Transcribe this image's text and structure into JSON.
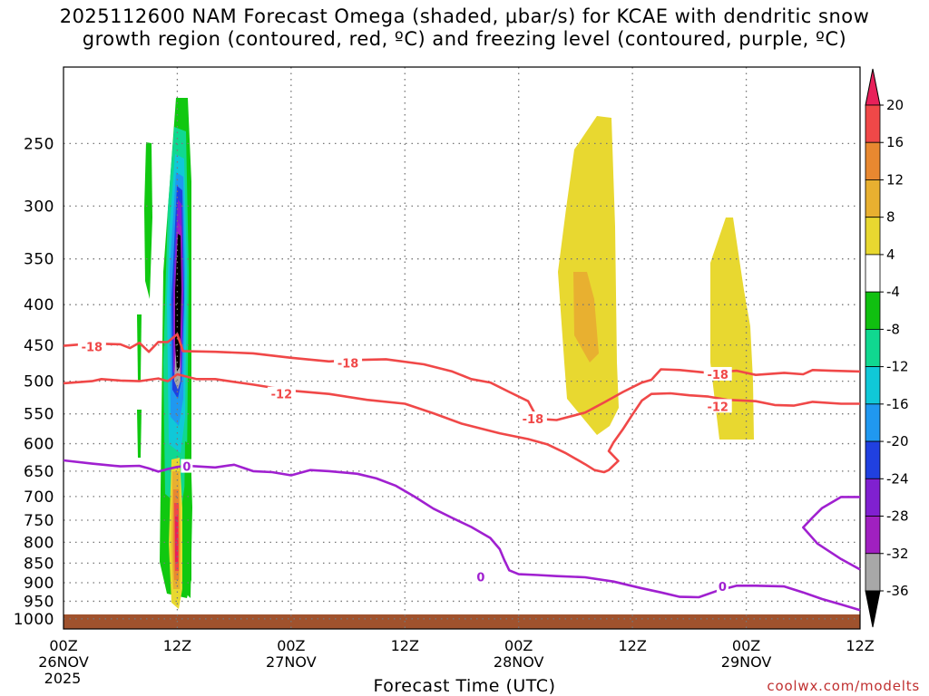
{
  "chart_data": {
    "type": "time-height cross-section",
    "title_line1": "2025112600 NAM Forecast Omega (shaded, μbar/s) for KCAE with dendritic snow",
    "title_line2": "growth region (contoured, red, ºC) and freezing level (contoured, purple, ºC)",
    "xlabel": "Forecast Time (UTC)",
    "credit": "coolwx.com/modelts",
    "x_range_hours": [
      0,
      84
    ],
    "y_range_hpa": [
      200,
      1030
    ],
    "y_ticks": [
      250,
      300,
      350,
      400,
      450,
      500,
      550,
      600,
      650,
      700,
      750,
      800,
      850,
      900,
      950,
      1000
    ],
    "x_ticks": [
      {
        "hour": 0,
        "label": "00Z",
        "sub1": "26NOV",
        "sub2": "2025"
      },
      {
        "hour": 12,
        "label": "12Z",
        "sub1": "",
        "sub2": ""
      },
      {
        "hour": 24,
        "label": "00Z",
        "sub1": "27NOV",
        "sub2": ""
      },
      {
        "hour": 36,
        "label": "12Z",
        "sub1": "",
        "sub2": ""
      },
      {
        "hour": 48,
        "label": "00Z",
        "sub1": "28NOV",
        "sub2": ""
      },
      {
        "hour": 60,
        "label": "12Z",
        "sub1": "",
        "sub2": ""
      },
      {
        "hour": 72,
        "label": "00Z",
        "sub1": "29NOV",
        "sub2": ""
      },
      {
        "hour": 84,
        "label": "12Z",
        "sub1": "",
        "sub2": ""
      }
    ],
    "colorbar": {
      "labels": [
        "20",
        "16",
        "12",
        "8",
        "4",
        "-4",
        "-8",
        "-12",
        "-16",
        "-20",
        "-24",
        "-28",
        "-32",
        "-36"
      ],
      "colors": [
        "#e8205a",
        "#f04848",
        "#e88830",
        "#e8b030",
        "#e8d830",
        "#ffffff",
        "#10c010",
        "#10d890",
        "#10c8d8",
        "#2098f0",
        "#2040e0",
        "#8020d0",
        "#a020c0",
        "#a8a8a8",
        "#000000"
      ]
    },
    "shading_colors": {
      "green": "#10c810",
      "teal": "#10d890",
      "cyan": "#10c8d8",
      "blue": "#2098f0",
      "darkblue": "#2040e0",
      "purple": "#8020d0",
      "violet": "#a020c0",
      "gray": "#a8a8a8",
      "black": "#000000",
      "yellow": "#e8d830",
      "gold": "#e8b030",
      "orange": "#e88830",
      "red": "#f04848",
      "pink": "#e8205a",
      "ground": "#a0522d"
    },
    "contour_colors": {
      "dendritic": "#f04848",
      "freezing": "#a020d0"
    },
    "contours": [
      {
        "name": "m18",
        "label": "-18",
        "color": "dendritic",
        "points": [
          [
            0,
            451
          ],
          [
            3,
            448
          ],
          [
            6,
            449
          ],
          [
            7,
            454
          ],
          [
            8,
            447
          ],
          [
            9,
            459
          ],
          [
            10,
            446
          ],
          [
            11,
            446
          ],
          [
            12,
            436
          ],
          [
            12.6,
            458
          ],
          [
            16,
            459
          ],
          [
            20,
            461
          ],
          [
            24,
            467
          ],
          [
            28,
            472
          ],
          [
            31,
            470
          ],
          [
            34,
            469
          ],
          [
            38,
            476
          ],
          [
            41,
            486
          ],
          [
            43,
            497
          ],
          [
            45,
            502
          ],
          [
            47,
            516
          ],
          [
            49,
            530
          ],
          [
            50,
            558
          ],
          [
            52,
            560
          ],
          [
            55,
            548
          ],
          [
            57,
            532
          ],
          [
            59,
            516
          ],
          [
            61,
            502
          ],
          [
            62,
            498
          ],
          [
            63,
            483
          ],
          [
            65,
            484
          ],
          [
            68,
            488
          ],
          [
            71,
            485
          ],
          [
            73,
            491
          ],
          [
            76,
            488
          ],
          [
            78,
            490
          ],
          [
            79,
            484
          ],
          [
            81,
            485
          ],
          [
            84,
            486
          ]
        ],
        "label_points": [
          {
            "hour": 3,
            "hpa": 452
          },
          {
            "hour": 30,
            "hpa": 474
          },
          {
            "hour": 49.5,
            "hpa": 558
          },
          {
            "hour": 69,
            "hpa": 490
          }
        ]
      },
      {
        "name": "m12",
        "label": "-12",
        "color": "dendritic",
        "points": [
          [
            0,
            503
          ],
          [
            3,
            500
          ],
          [
            4,
            497
          ],
          [
            6,
            499
          ],
          [
            8,
            500
          ],
          [
            10,
            496
          ],
          [
            11,
            500
          ],
          [
            12,
            490
          ],
          [
            14,
            497
          ],
          [
            16,
            497
          ],
          [
            20,
            505
          ],
          [
            24,
            514
          ],
          [
            28,
            519
          ],
          [
            32,
            528
          ],
          [
            36,
            534
          ],
          [
            39,
            549
          ],
          [
            42,
            566
          ],
          [
            46,
            582
          ],
          [
            49,
            592
          ],
          [
            51,
            601
          ],
          [
            53,
            617
          ],
          [
            55,
            637
          ],
          [
            56,
            648
          ],
          [
            57,
            652
          ],
          [
            57.5,
            648
          ],
          [
            58.5,
            631
          ],
          [
            57.5,
            613
          ],
          [
            58,
            598
          ],
          [
            59,
            575
          ],
          [
            60,
            551
          ],
          [
            61,
            529
          ],
          [
            62,
            519
          ],
          [
            64,
            518
          ],
          [
            66,
            521
          ],
          [
            68,
            523
          ],
          [
            70,
            528
          ],
          [
            73,
            530
          ],
          [
            75,
            536
          ],
          [
            77,
            537
          ],
          [
            79,
            531
          ],
          [
            82,
            534
          ],
          [
            84,
            534
          ]
        ],
        "label_points": [
          {
            "hour": 23,
            "hpa": 519
          },
          {
            "hour": 69,
            "hpa": 538
          }
        ]
      },
      {
        "name": "zero-left",
        "label": "0",
        "color": "freezing",
        "points": [
          [
            0,
            630
          ],
          [
            3,
            636
          ],
          [
            6,
            641
          ],
          [
            8,
            640
          ],
          [
            9,
            645
          ],
          [
            10,
            651
          ],
          [
            11,
            646
          ],
          [
            12,
            642
          ],
          [
            13,
            640
          ],
          [
            14,
            641
          ],
          [
            16,
            643
          ],
          [
            18,
            638
          ],
          [
            19,
            644
          ],
          [
            20,
            650
          ],
          [
            22,
            652
          ],
          [
            24,
            658
          ],
          [
            26,
            648
          ],
          [
            28,
            650
          ],
          [
            31,
            655
          ],
          [
            33,
            664
          ],
          [
            35,
            678
          ],
          [
            37,
            700
          ],
          [
            39,
            725
          ],
          [
            41,
            745
          ],
          [
            43,
            765
          ],
          [
            45,
            790
          ],
          [
            46,
            816
          ],
          [
            46.5,
            843
          ],
          [
            47,
            868
          ],
          [
            48,
            878
          ],
          [
            50,
            880
          ],
          [
            52,
            883
          ],
          [
            55,
            886
          ],
          [
            58,
            897
          ],
          [
            61,
            915
          ],
          [
            63,
            926
          ],
          [
            65,
            938
          ],
          [
            67,
            939
          ],
          [
            69,
            921
          ],
          [
            71,
            908
          ],
          [
            73,
            908
          ],
          [
            76,
            910
          ],
          [
            78,
            926
          ],
          [
            80,
            944
          ],
          [
            82,
            959
          ],
          [
            84,
            975
          ]
        ],
        "label_points": [
          {
            "hour": 13,
            "hpa": 641
          },
          {
            "hour": 44,
            "hpa": 885
          },
          {
            "hour": 69.5,
            "hpa": 910
          }
        ]
      },
      {
        "name": "zero-right",
        "label": "0",
        "color": "freezing",
        "points": [
          [
            84,
            701
          ],
          [
            82,
            701
          ],
          [
            80,
            724
          ],
          [
            79,
            744
          ],
          [
            78,
            766
          ],
          [
            79.5,
            803
          ],
          [
            82,
            840
          ],
          [
            84,
            866
          ]
        ],
        "label_points": []
      }
    ]
  }
}
